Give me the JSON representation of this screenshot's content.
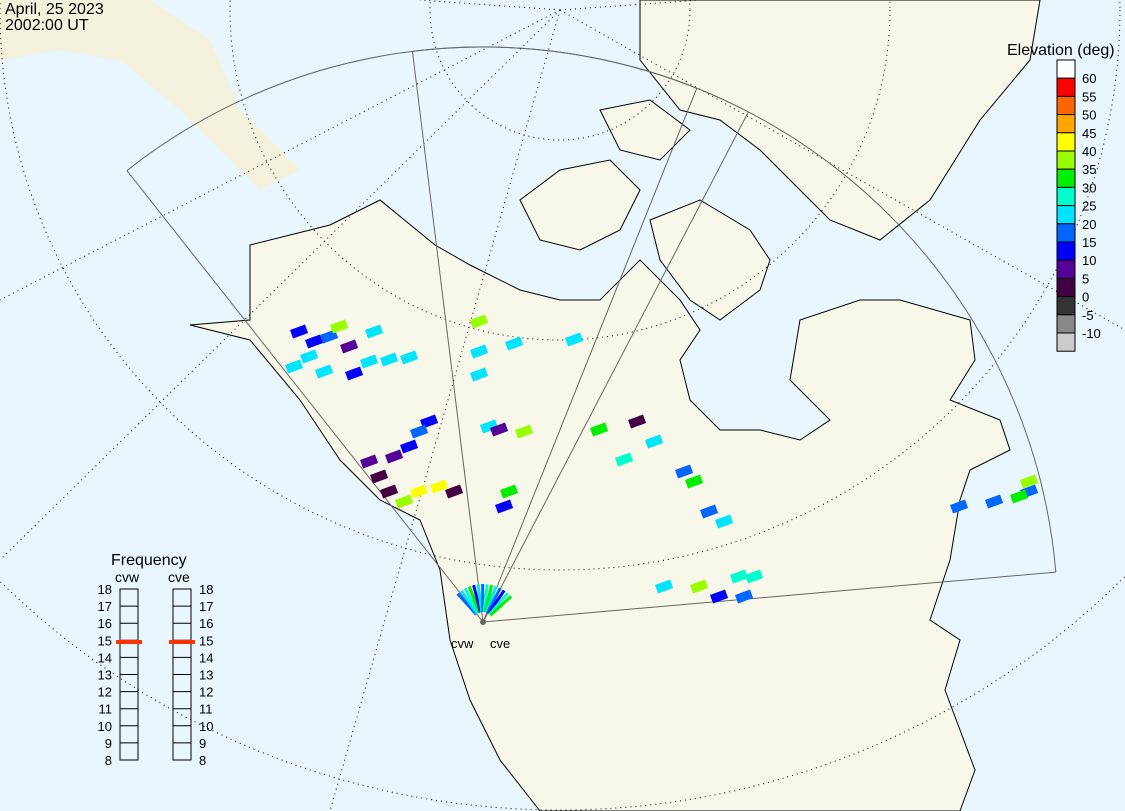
{
  "header": {
    "date": "April, 25 2023",
    "time": "2002:00 UT"
  },
  "radars": [
    {
      "code": "cvw",
      "label": "cvw"
    },
    {
      "code": "cve",
      "label": "cve"
    }
  ],
  "colors": {
    "ocean": "#eaf6fd",
    "land": "#f8f8ea",
    "fan_outline": "#666666",
    "frequency_marker": "#ff3300"
  },
  "elevation_legend": {
    "title": "Elevation (deg)",
    "colors": [
      "#ffffff",
      "#ff0000",
      "#ff6600",
      "#ffa500",
      "#ffff00",
      "#99ff00",
      "#00ee00",
      "#00ffcc",
      "#00e5ff",
      "#0066ff",
      "#0000ff",
      "#550099",
      "#440044",
      "#333333",
      "#888888",
      "#cccccc"
    ],
    "labels": [
      "60",
      "55",
      "50",
      "45",
      "40",
      "35",
      "30",
      "25",
      "20",
      "15",
      "10",
      "5",
      "0",
      "-5",
      "-10"
    ]
  },
  "frequency_panel": {
    "title": "Frequency",
    "ticks": [
      "18",
      "17",
      "16",
      "15",
      "14",
      "13",
      "12",
      "11",
      "10",
      "9",
      "8"
    ],
    "range_mhz": [
      8,
      18
    ],
    "values": [
      {
        "radar": "cvw",
        "mhz": 14.9
      },
      {
        "radar": "cve",
        "mhz": 14.9
      }
    ]
  }
}
